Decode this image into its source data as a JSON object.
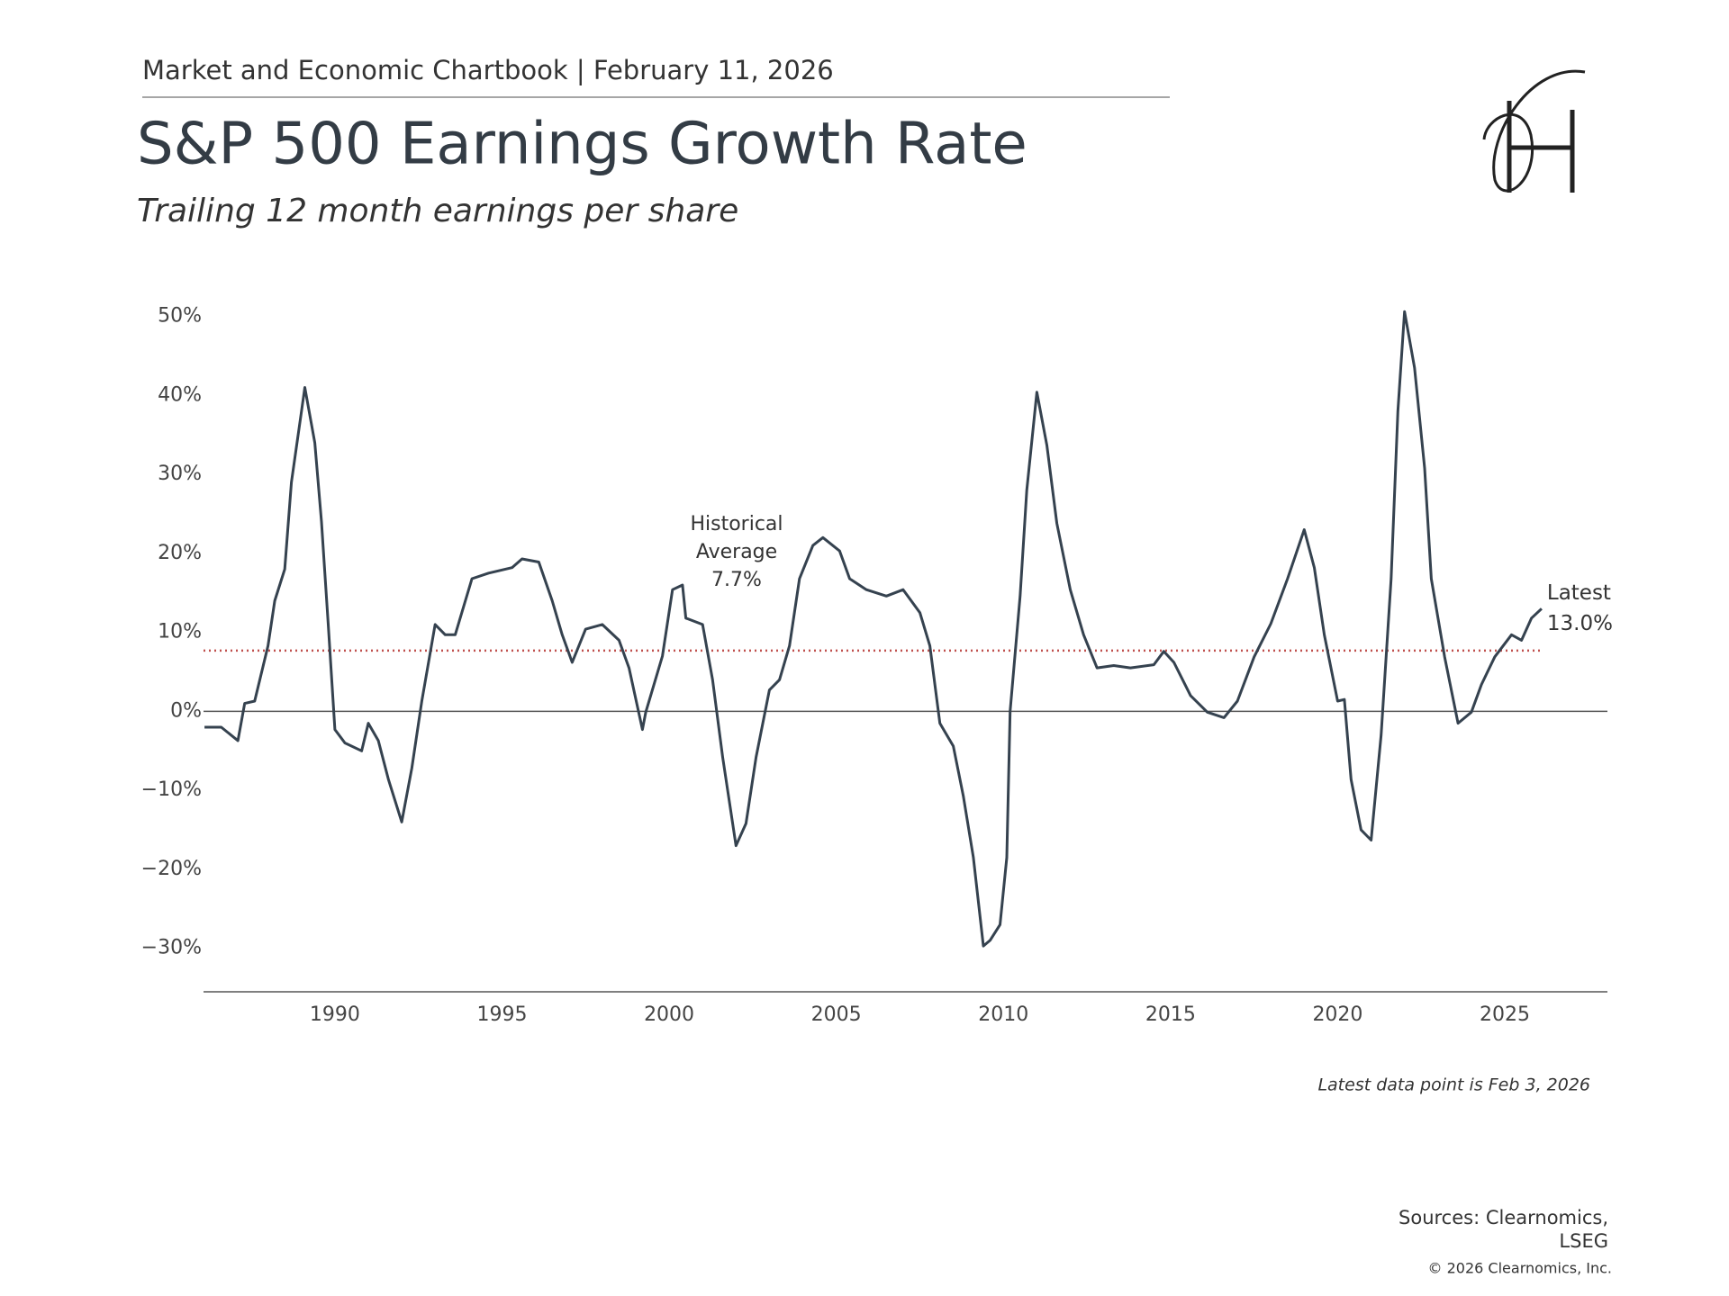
{
  "header": "Market and Economic Chartbook | February 11, 2026",
  "chart_data": {
    "type": "line",
    "title": "S&P 500 Earnings Growth Rate",
    "subtitle": "Trailing 12 month earnings per share",
    "xlim": [
      1986.07,
      2028.07
    ],
    "xticks": [
      1990,
      1995,
      2000,
      2005,
      2010,
      2015,
      2020,
      2025
    ],
    "ylim": [
      -35.5,
      52
    ],
    "yticks": [
      {
        "value": -30,
        "label": "−30%"
      },
      {
        "value": -20,
        "label": "−20%"
      },
      {
        "value": -10,
        "label": "−10%"
      },
      {
        "value": 0,
        "label": "0%"
      },
      {
        "value": 10,
        "label": "10%"
      },
      {
        "value": 20,
        "label": "20%"
      },
      {
        "value": 30,
        "label": "30%"
      },
      {
        "value": 40,
        "label": "40%"
      },
      {
        "value": 50,
        "label": "50%"
      }
    ],
    "series": [
      {
        "color": "#35424f",
        "x": [
          1986.1,
          1986.6,
          1987.1,
          1987.3,
          1987.6,
          1988.0,
          1988.2,
          1988.5,
          1988.7,
          1989.0,
          1989.1,
          1989.4,
          1989.6,
          1989.8,
          1990.0,
          1990.3,
          1990.8,
          1991.0,
          1991.3,
          1991.6,
          1992.0,
          1992.3,
          1992.6,
          1993.0,
          1993.3,
          1993.6,
          1994.1,
          1994.6,
          1995.3,
          1995.6,
          1996.1,
          1996.5,
          1996.8,
          1997.1,
          1997.5,
          1998.0,
          1998.5,
          1998.8,
          1999.2,
          1999.3,
          1999.8,
          2000.1,
          2000.4,
          2000.5,
          2001.0,
          2001.3,
          2001.6,
          2002.0,
          2002.3,
          2002.6,
          2003.0,
          2003.3,
          2003.6,
          2003.9,
          2004.3,
          2004.6,
          2005.1,
          2005.4,
          2005.9,
          2006.5,
          2007.0,
          2007.5,
          2007.8,
          2008.1,
          2008.5,
          2008.8,
          2009.1,
          2009.4,
          2009.6,
          2009.9,
          2010.1,
          2010.2,
          2010.5,
          2010.7,
          2011.0,
          2011.3,
          2011.6,
          2012.0,
          2012.4,
          2012.8,
          2013.3,
          2013.8,
          2014.5,
          2014.8,
          2015.1,
          2015.6,
          2016.1,
          2016.6,
          2017.0,
          2017.5,
          2018.0,
          2018.5,
          2019.0,
          2019.3,
          2019.6,
          2020.0,
          2020.2,
          2020.4,
          2020.7,
          2021.0,
          2021.3,
          2021.6,
          2021.8,
          2022.0,
          2022.3,
          2022.6,
          2022.8,
          2023.2,
          2023.6,
          2024.0,
          2024.3,
          2024.7,
          2025.2,
          2025.5,
          2025.8,
          2026.1
        ],
        "values": [
          -2,
          -2,
          -3.7,
          1,
          1.3,
          8.3,
          14,
          18,
          29,
          38,
          41,
          34,
          24,
          11,
          -2.3,
          -4,
          -5,
          -1.5,
          -3.7,
          -8.6,
          -14,
          -7.2,
          1.3,
          11,
          9.7,
          9.7,
          16.8,
          17.5,
          18.2,
          19.3,
          18.9,
          14,
          9.7,
          6.2,
          10.4,
          11,
          9,
          5.5,
          -2.3,
          -0.1,
          7,
          15.4,
          16,
          11.8,
          11,
          4,
          -5.8,
          -17,
          -14.2,
          -5.8,
          2.7,
          4,
          8.3,
          16.8,
          21,
          22,
          20.3,
          16.8,
          15.4,
          14.6,
          15.4,
          12.5,
          8.3,
          -1.5,
          -4.4,
          -10.7,
          -18.5,
          -29.7,
          -29,
          -27,
          -18.5,
          0,
          14.6,
          28,
          40.4,
          33.7,
          23.8,
          15.4,
          9.7,
          5.5,
          5.8,
          5.5,
          5.9,
          7.6,
          6.2,
          2,
          -0.1,
          -0.8,
          1.3,
          6.9,
          11.1,
          16.8,
          23,
          18.2,
          9.7,
          1.3,
          1.5,
          -8.6,
          -15,
          -16.3,
          -3,
          16.8,
          38,
          50.6,
          43.5,
          30.8,
          16.8,
          6.9,
          -1.5,
          -0.1,
          3.4,
          6.9,
          9.7,
          9,
          11.8,
          13.0
        ]
      }
    ],
    "average": {
      "value": 7.7,
      "color": "#c0504d",
      "label": [
        "Historical",
        "Average"
      ],
      "value_label": "7.7%"
    },
    "latest": {
      "label": "Latest",
      "value_label": "13.0%"
    },
    "note": "Latest data point is Feb 3, 2026"
  },
  "sources": [
    "Sources: Clearnomics,",
    "LSEG"
  ],
  "copyright": "© 2026 Clearnomics, Inc."
}
